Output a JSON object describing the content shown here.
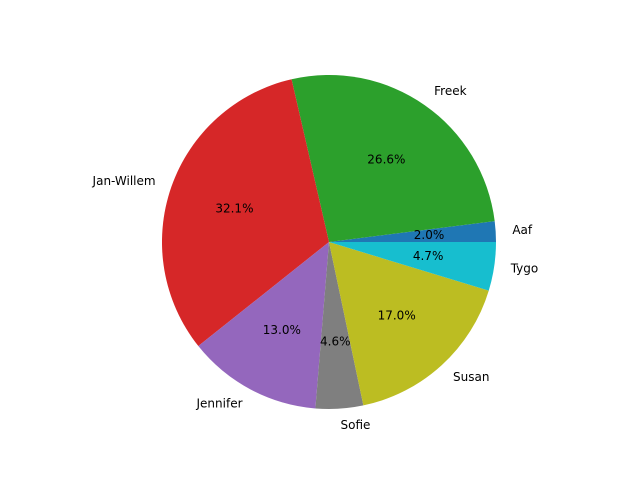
{
  "chart_data": {
    "type": "pie",
    "title": "",
    "start_angle_deg": 0,
    "direction": "counterclockwise",
    "slices": [
      {
        "label": "Aaf",
        "value": 2.0,
        "pct_label": "2.0%",
        "color": "#1f77b4"
      },
      {
        "label": "Freek",
        "value": 26.6,
        "pct_label": "26.6%",
        "color": "#2ca02c"
      },
      {
        "label": "Jan-Willem",
        "value": 32.1,
        "pct_label": "32.1%",
        "color": "#d62728"
      },
      {
        "label": "Jennifer",
        "value": 13.0,
        "pct_label": "13.0%",
        "color": "#9467bd"
      },
      {
        "label": "Sofie",
        "value": 4.6,
        "pct_label": "4.6%",
        "color": "#7f7f7f"
      },
      {
        "label": "Susan",
        "value": 17.0,
        "pct_label": "17.0%",
        "color": "#bcbd22"
      },
      {
        "label": "Tygo",
        "value": 4.7,
        "pct_label": "4.7%",
        "color": "#17becf"
      }
    ]
  }
}
